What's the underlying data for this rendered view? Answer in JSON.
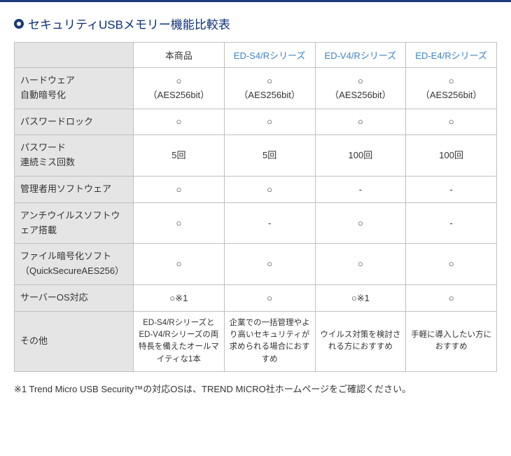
{
  "section_title": "セキュリティUSBメモリー機能比較表",
  "columns": {
    "c0": "",
    "c1": "本商品",
    "c2": "ED-S4/Rシリーズ",
    "c3": "ED-V4/Rシリーズ",
    "c4": "ED-E4/Rシリーズ"
  },
  "rows": {
    "r1": {
      "label": "ハードウェア\n自動暗号化",
      "c1": "○\n（AES256bit）",
      "c2": "○\n（AES256bit）",
      "c3": "○\n（AES256bit）",
      "c4": "○\n（AES256bit）"
    },
    "r2": {
      "label": "パスワードロック",
      "c1": "○",
      "c2": "○",
      "c3": "○",
      "c4": "○"
    },
    "r3": {
      "label": "パスワード\n連続ミス回数",
      "c1": "5回",
      "c2": "5回",
      "c3": "100回",
      "c4": "100回"
    },
    "r4": {
      "label": "管理者用ソフトウェア",
      "c1": "○",
      "c2": "○",
      "c3": "-",
      "c4": "-"
    },
    "r5": {
      "label": "アンチウイルスソフトウェア搭載",
      "c1": "○",
      "c2": "-",
      "c3": "○",
      "c4": "-"
    },
    "r6": {
      "label": "ファイル暗号化ソフト\n（QuickSecureAES256）",
      "c1": "○",
      "c2": "○",
      "c3": "○",
      "c4": "○"
    },
    "r7": {
      "label": "サーバーOS対応",
      "c1": "○※1",
      "c2": "○",
      "c3": "○※1",
      "c4": "○"
    },
    "r8": {
      "label": "その他",
      "c1": "ED-S4/RシリーズとED-V4/Rシリーズの両特長を備えたオールマイティな1本",
      "c2": "企業での一括管理やより高いセキュリティが求められる場合におすすめ",
      "c3": "ウイルス対策を検討される方におすすめ",
      "c4": "手軽に導入したい方におすすめ"
    }
  },
  "footnote": "※1 Trend Micro USB Security™の対応OSは、TREND MICRO社ホームページをご確認ください。"
}
